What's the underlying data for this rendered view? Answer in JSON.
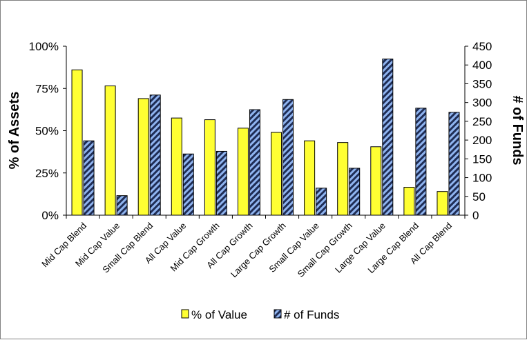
{
  "chart_data": {
    "type": "bar",
    "categories": [
      "Mid Cap Blend",
      "Mid Cap Value",
      "Small Cap Blend",
      "All Cap Value",
      "Mid Cap Growth",
      "All Cap Growth",
      "Large Cap Growth",
      "Small Cap Value",
      "Small Cap Growth",
      "Large Cap Value",
      "Large Cap Blend",
      "All Cap Blend"
    ],
    "series": [
      {
        "name": "% of Value",
        "axis": "left",
        "color": "#ffff33",
        "values": [
          0.86,
          0.765,
          0.69,
          0.575,
          0.565,
          0.515,
          0.49,
          0.44,
          0.43,
          0.405,
          0.165,
          0.14
        ]
      },
      {
        "name": "# of Funds",
        "axis": "right",
        "color": "#1f2d55",
        "stripe_color": "#8fb4f0",
        "values": [
          198,
          52,
          320,
          163,
          170,
          281,
          308,
          72,
          125,
          416,
          285,
          274
        ]
      }
    ],
    "y_left": {
      "label": "% of Assets",
      "ticks": [
        "0%",
        "25%",
        "50%",
        "75%",
        "100%"
      ],
      "range": [
        0,
        1
      ]
    },
    "y_right": {
      "label": "# of Funds",
      "ticks": [
        "0",
        "50",
        "100",
        "150",
        "200",
        "250",
        "300",
        "350",
        "400",
        "450"
      ],
      "range": [
        0,
        450
      ]
    },
    "legend": {
      "position": "bottom",
      "items": [
        "% of Value",
        "# of Funds"
      ]
    },
    "grid": false
  }
}
